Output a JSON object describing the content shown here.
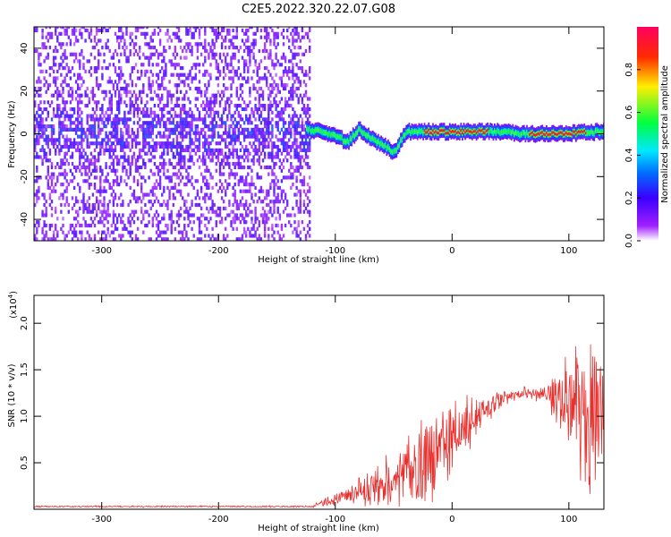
{
  "title": "C2E5.2022.320.22.07.G08",
  "chart_data": [
    {
      "type": "heatmap",
      "xlabel": "Height of straight line (km)",
      "ylabel": "Frequency (Hz)",
      "xlim": [
        -358,
        130
      ],
      "ylim": [
        -50,
        50
      ],
      "xticks": [
        -300,
        -200,
        -100,
        0,
        100
      ],
      "yticks": [
        -40,
        -20,
        0,
        20,
        40
      ],
      "colorbar": {
        "label": "Normalized spectral amplitude",
        "range": [
          0.0,
          1.0
        ],
        "ticks": [
          0.0,
          0.2,
          0.4,
          0.6,
          0.8
        ]
      },
      "noise_region_x": [
        -358,
        -122
      ],
      "signal_track": [
        [
          -125,
          2
        ],
        [
          -110,
          1
        ],
        [
          -100,
          -1
        ],
        [
          -90,
          -4
        ],
        [
          -80,
          2
        ],
        [
          -70,
          -2
        ],
        [
          -60,
          -5
        ],
        [
          -50,
          -9
        ],
        [
          -40,
          1
        ],
        [
          -30,
          1
        ],
        [
          -20,
          1
        ],
        [
          0,
          1
        ],
        [
          40,
          1
        ],
        [
          60,
          0
        ],
        [
          90,
          0
        ],
        [
          130,
          1
        ]
      ],
      "peak_segments": [
        [
          -25,
          30
        ],
        [
          65,
          115
        ]
      ]
    },
    {
      "type": "line",
      "xlabel": "Height of straight line (km)",
      "ylabel": "SNR (10 * v/v)",
      "yscale_label": "(x10",
      "yscale_exp": "4",
      "xlim": [
        -358,
        130
      ],
      "ylim": [
        0,
        2.3
      ],
      "xticks": [
        -300,
        -200,
        -100,
        0,
        100
      ],
      "yticks": [
        0.5,
        1.0,
        1.5,
        2.0
      ],
      "series_color": "#e8312f",
      "envelope": [
        [
          -358,
          0.03
        ],
        [
          -120,
          0.03
        ],
        [
          -110,
          0.07
        ],
        [
          -100,
          0.12
        ],
        [
          -80,
          0.2
        ],
        [
          -60,
          0.3
        ],
        [
          -40,
          0.4
        ],
        [
          -20,
          0.6
        ],
        [
          0,
          0.8
        ],
        [
          20,
          1.0
        ],
        [
          40,
          1.17
        ],
        [
          60,
          1.25
        ],
        [
          80,
          1.25
        ],
        [
          90,
          1.22
        ],
        [
          100,
          1.22
        ],
        [
          115,
          1.2
        ],
        [
          130,
          1.2
        ]
      ],
      "noise_amplitude": [
        [
          -358,
          0.01
        ],
        [
          -120,
          0.01
        ],
        [
          -110,
          0.06
        ],
        [
          -90,
          0.1
        ],
        [
          -50,
          0.35
        ],
        [
          -30,
          0.55
        ],
        [
          -10,
          0.55
        ],
        [
          10,
          0.45
        ],
        [
          30,
          0.2
        ],
        [
          50,
          0.08
        ],
        [
          80,
          0.1
        ],
        [
          95,
          0.5
        ],
        [
          115,
          1.05
        ],
        [
          130,
          0.8
        ]
      ]
    }
  ]
}
